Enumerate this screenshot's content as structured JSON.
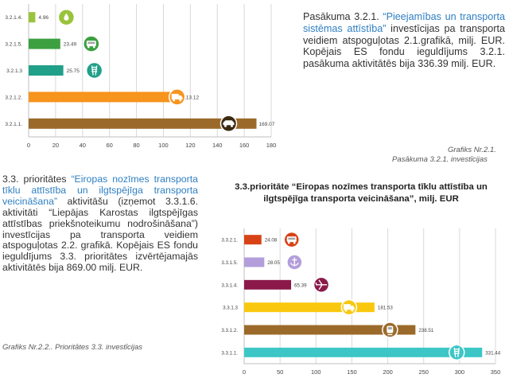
{
  "chart_data": [
    {
      "type": "bar",
      "orientation": "horizontal",
      "categories": [
        "3.2.1.4.",
        "3.2.1.5.",
        "3.2.1.3",
        "3.2.1.2.",
        "3.2.1.1."
      ],
      "values": [
        4.96,
        23.49,
        25.75,
        113.12,
        169.07
      ],
      "value_labels": [
        "4.96",
        "23.49",
        "25.75",
        "113.12",
        "169.07"
      ],
      "bar_colors": [
        "#9ac33c",
        "#3ca041",
        "#21a089",
        "#f7941d",
        "#9b6a2a"
      ],
      "icons": [
        "water-drop-icon",
        "bus-icon",
        "rail-icon",
        "truck-icon",
        "car-icon"
      ],
      "xlim": [
        0,
        180
      ],
      "xticks": [
        "0",
        "20",
        "40",
        "60",
        "80",
        "100",
        "120",
        "140",
        "160",
        "180"
      ],
      "grid": true
    },
    {
      "type": "bar",
      "orientation": "horizontal",
      "title": "3.3.prioritāte “Eiropas nozīmes transporta tīklu attīstība un ilgtspējīga transporta veicināšana”, milj. EUR",
      "categories": [
        "3.3.2.1.",
        "3.3.1.5.",
        "3.3.1.4.",
        "3.3.1.3",
        "3.3.1.2.",
        "3.3.1.1."
      ],
      "values": [
        24.08,
        28.05,
        65.39,
        181.53,
        238.51,
        331.44
      ],
      "value_labels": [
        "24.08",
        "28.05",
        "65.39",
        "181.53",
        "238.51",
        "331.44"
      ],
      "bar_colors": [
        "#d84315",
        "#b39ddb",
        "#8b1a4a",
        "#f9c80e",
        "#9b6a2a",
        "#3cc6c6"
      ],
      "icons": [
        "bus-icon",
        "port-icon",
        "plane-icon",
        "truck-icon",
        "tram-icon",
        "rail-icon"
      ],
      "xlim": [
        0,
        350
      ],
      "xticks": [
        "0",
        "50",
        "100",
        "150",
        "200",
        "250",
        "300",
        "350"
      ],
      "grid": true
    }
  ],
  "text": {
    "p1_a": "Pasākuma 3.2.1. ",
    "p1_q": "“Pieejamības un transporta sistēmas attīstība”",
    "p1_b": " investīcijas pa transporta veidiem atspoguļotas 2.1.grafikā, milj. EUR. Kopējais ES fondu ieguldījums 3.2.1. pasākuma aktivitātēs bija 336.39 milj. EUR.",
    "cap1a": "Grafiks Nr.2.1.",
    "cap1b": "Pasākuma 3.2.1. investīcijas",
    "p2_a": "3.3. prioritātes ",
    "p2_q": "“Eiropas nozīmes transporta tīklu attīstība un ilgtspējīga transporta veicināšana”",
    "p2_b": " aktivitāšu (izņemot 3.3.1.6. aktivitāti “Liepājas Karostas ilgtspējīgas attīstības priekšnoteikumu nodrošināšana”) investīcijas pa transporta veidiem atspoguļotas 2.2. grafikā. Kopējais ES fondu ieguldījums 3.3. prioritātes izvērtējamajās aktivitātēs bija 869.00 milj. EUR.",
    "cap2": "Grafiks Nr.2.2.. Prioritātes 3.3. investīcijas"
  }
}
